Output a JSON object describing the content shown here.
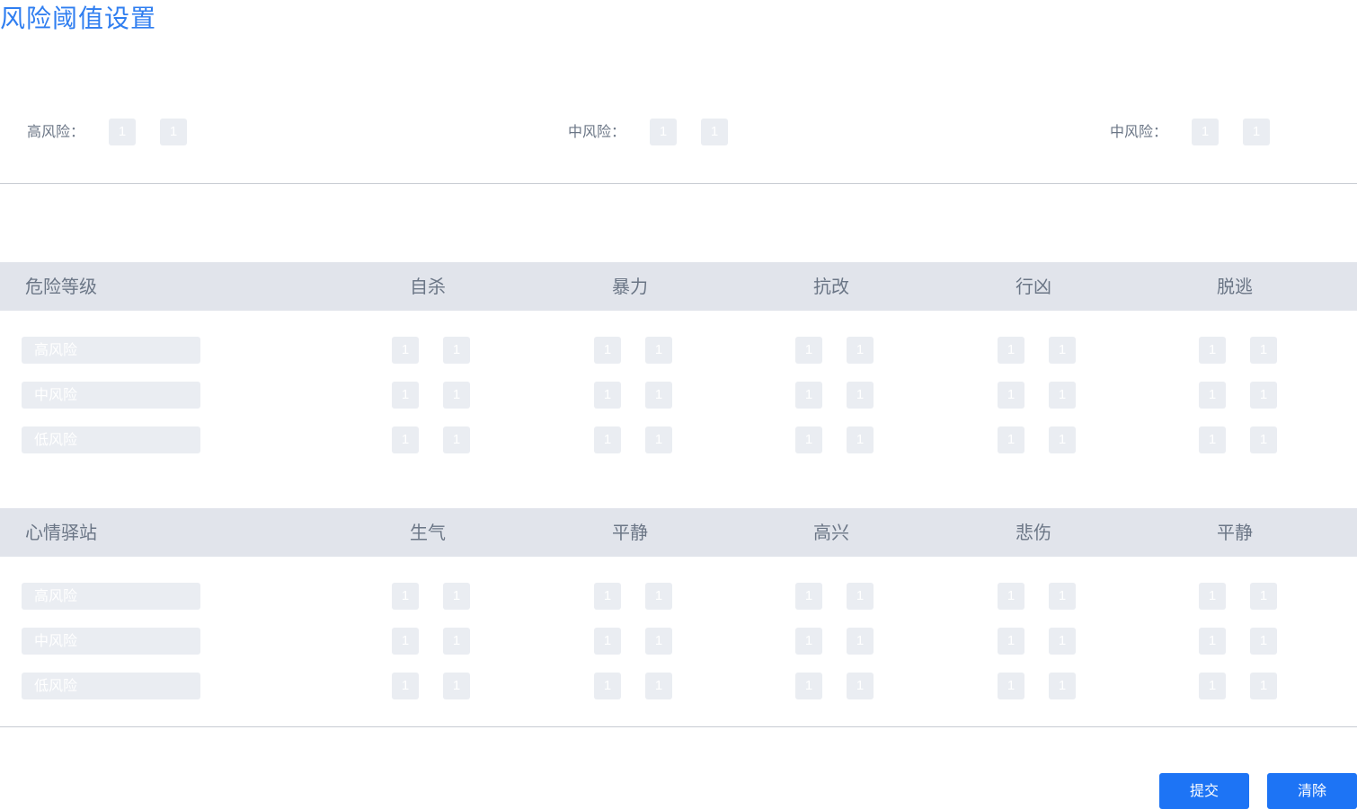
{
  "page_title": "风险阈值设置",
  "overall": [
    {
      "label": "高风险：",
      "min": "1",
      "max": "1"
    },
    {
      "label": "中风险：",
      "min": "1",
      "max": "1"
    },
    {
      "label": "中风险：",
      "min": "1",
      "max": "1"
    }
  ],
  "tables": [
    {
      "header": "危险等级",
      "columns": [
        "自杀",
        "暴力",
        "抗改",
        "行凶",
        "脱逃"
      ],
      "rows": [
        {
          "level": "高风险",
          "values": [
            [
              "1",
              "1"
            ],
            [
              "1",
              "1"
            ],
            [
              "1",
              "1"
            ],
            [
              "1",
              "1"
            ],
            [
              "1",
              "1"
            ]
          ]
        },
        {
          "level": "中风险",
          "values": [
            [
              "1",
              "1"
            ],
            [
              "1",
              "1"
            ],
            [
              "1",
              "1"
            ],
            [
              "1",
              "1"
            ],
            [
              "1",
              "1"
            ]
          ]
        },
        {
          "level": "低风险",
          "values": [
            [
              "1",
              "1"
            ],
            [
              "1",
              "1"
            ],
            [
              "1",
              "1"
            ],
            [
              "1",
              "1"
            ],
            [
              "1",
              "1"
            ]
          ]
        }
      ]
    },
    {
      "header": "心情驿站",
      "columns": [
        "生气",
        "平静",
        "高兴",
        "悲伤",
        "平静"
      ],
      "rows": [
        {
          "level": "高风险",
          "values": [
            [
              "1",
              "1"
            ],
            [
              "1",
              "1"
            ],
            [
              "1",
              "1"
            ],
            [
              "1",
              "1"
            ],
            [
              "1",
              "1"
            ]
          ]
        },
        {
          "level": "中风险",
          "values": [
            [
              "1",
              "1"
            ],
            [
              "1",
              "1"
            ],
            [
              "1",
              "1"
            ],
            [
              "1",
              "1"
            ],
            [
              "1",
              "1"
            ]
          ]
        },
        {
          "level": "低风险",
          "values": [
            [
              "1",
              "1"
            ],
            [
              "1",
              "1"
            ],
            [
              "1",
              "1"
            ],
            [
              "1",
              "1"
            ],
            [
              "1",
              "1"
            ]
          ]
        }
      ]
    }
  ],
  "buttons": {
    "submit": "提交",
    "clear": "清除"
  },
  "colors": {
    "accent": "#1d74f5",
    "title": "#2f7ef0",
    "header_bg": "#e1e4eb",
    "input_bg": "#eaedf2"
  }
}
